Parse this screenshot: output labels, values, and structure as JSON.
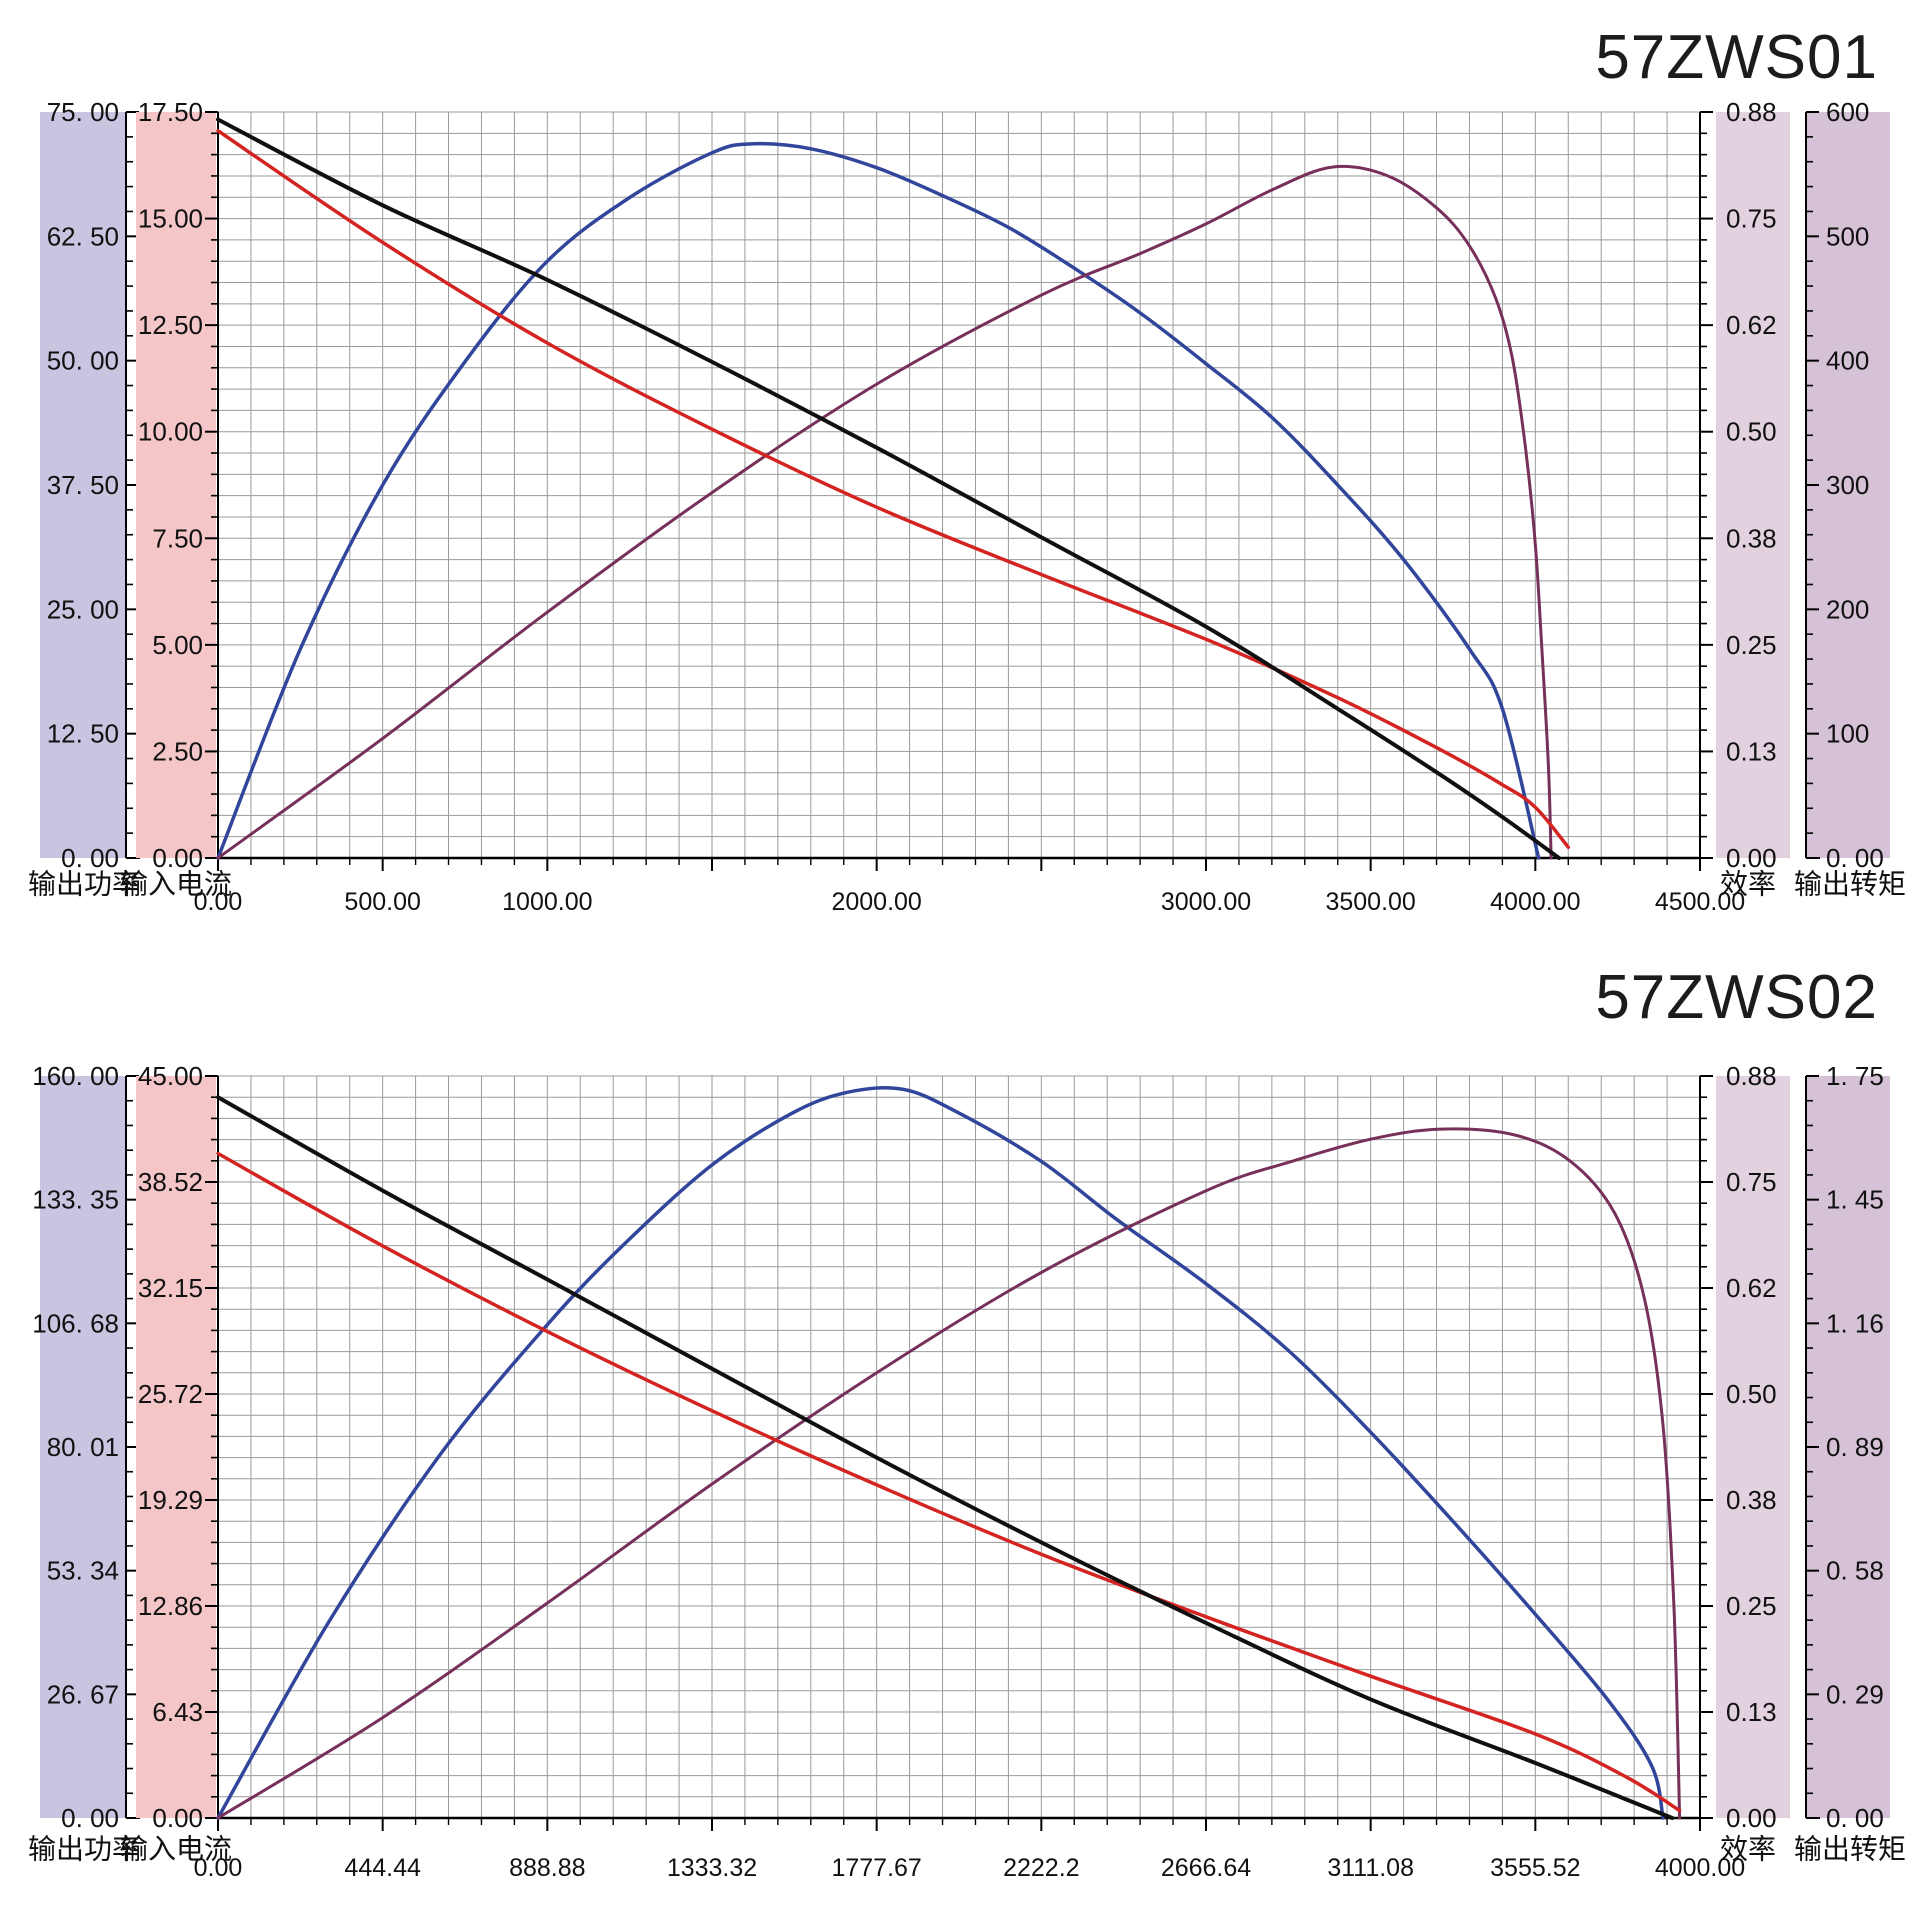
{
  "page": {
    "background": "#ffffff",
    "grid_color": "#9a9a9a",
    "axis_color": "#000000"
  },
  "charts": [
    {
      "title": "57ZWS01",
      "axes": {
        "left_outer": {
          "title": "输出功率",
          "strip_color": "#c8c5e1",
          "labels": [
            "75. 00",
            "62. 50",
            "50. 00",
            "37. 50",
            "25. 00",
            "12. 50",
            "0. 00"
          ]
        },
        "left_inner": {
          "title": "输入电流",
          "strip_color": "#f4c6c8",
          "labels": [
            "17.50",
            "15.00",
            "12.50",
            "10.00",
            "7.50",
            "5.00",
            "2.50",
            "0.00"
          ]
        },
        "right_inner": {
          "title": "效率",
          "strip_color": "#e2d2e0",
          "labels": [
            "0.88",
            "0.75",
            "0.62",
            "0.50",
            "0.38",
            "0.25",
            "0.13",
            "0.00"
          ]
        },
        "right_outer": {
          "title": "输出转矩",
          "strip_color": "#d5c2d6",
          "labels": [
            "600",
            "500",
            "400",
            "300",
            "200",
            "100",
            "0. 00"
          ]
        },
        "x_labels": [
          "0.00",
          "500.00",
          "1000.00",
          "",
          "2000.00",
          "",
          "3000.00",
          "3500.00",
          "4000.00",
          "4500.00"
        ]
      },
      "chart_data": {
        "type": "line",
        "xlabel": "",
        "x_range": [
          0,
          4500
        ],
        "grid": {
          "columns": 45,
          "rows": 35
        },
        "legend_position": "none",
        "series": [
          {
            "name": "输出功率",
            "color": "#31459b",
            "width": 3.5,
            "axis": "输出功率",
            "axis_range": [
              0,
              75
            ],
            "points": [
              [
                0,
                0
              ],
              [
                250,
                21
              ],
              [
                500,
                37.5
              ],
              [
                750,
                49.9
              ],
              [
                1000,
                60
              ],
              [
                1250,
                66.4
              ],
              [
                1500,
                70.9
              ],
              [
                1625,
                71.8
              ],
              [
                1800,
                71.3
              ],
              [
                2000,
                69.4
              ],
              [
                2200,
                66.6
              ],
              [
                2400,
                63.4
              ],
              [
                2600,
                59.3
              ],
              [
                2800,
                54.8
              ],
              [
                3000,
                49.7
              ],
              [
                3200,
                44.3
              ],
              [
                3400,
                37.5
              ],
              [
                3600,
                30
              ],
              [
                3800,
                21
              ],
              [
                3900,
                15
              ],
              [
                4010,
                0
              ]
            ]
          },
          {
            "name": "效率",
            "color": "#77305a",
            "width": 3,
            "axis": "效率",
            "axis_range": [
              0,
              0.88
            ],
            "points": [
              [
                0,
                0
              ],
              [
                500,
                0.141
              ],
              [
                1000,
                0.29
              ],
              [
                1500,
                0.431
              ],
              [
                2000,
                0.559
              ],
              [
                2500,
                0.664
              ],
              [
                2800,
                0.713
              ],
              [
                3000,
                0.748
              ],
              [
                3200,
                0.788
              ],
              [
                3383,
                0.815
              ],
              [
                3550,
                0.805
              ],
              [
                3700,
                0.767
              ],
              [
                3800,
                0.722
              ],
              [
                3880,
                0.66
              ],
              [
                3930,
                0.59
              ],
              [
                3970,
                0.484
              ],
              [
                4000,
                0.37
              ],
              [
                4020,
                0.246
              ],
              [
                4040,
                0.106
              ],
              [
                4048,
                0
              ]
            ]
          },
          {
            "name": "输入电流",
            "color": "#d42421",
            "width": 3.5,
            "axis": "输入电流",
            "axis_range": [
              0,
              17.5
            ],
            "points": [
              [
                0,
                17.06
              ],
              [
                500,
                14.44
              ],
              [
                1000,
                12.08
              ],
              [
                1500,
                10.06
              ],
              [
                2000,
                8.23
              ],
              [
                2500,
                6.65
              ],
              [
                3000,
                5.13
              ],
              [
                3400,
                3.76
              ],
              [
                3700,
                2.59
              ],
              [
                3900,
                1.72
              ],
              [
                4000,
                1.19
              ],
              [
                4100,
                0.25
              ]
            ]
          },
          {
            "name": "输出转矩",
            "color": "#101010",
            "width": 4,
            "axis": "输出转矩",
            "axis_range": [
              0,
              600
            ],
            "points": [
              [
                0,
                594
              ],
              [
                500,
                525
              ],
              [
                1000,
                465
              ],
              [
                1500,
                399
              ],
              [
                2000,
                330
              ],
              [
                2500,
                258
              ],
              [
                3000,
                186
              ],
              [
                3400,
                120
              ],
              [
                3700,
                69
              ],
              [
                3900,
                33
              ],
              [
                4072,
                0
              ]
            ]
          }
        ]
      }
    },
    {
      "title": "57ZWS02",
      "axes": {
        "left_outer": {
          "title": "输出功率",
          "strip_color": "#c8c5e1",
          "labels": [
            "160. 00",
            "133. 35",
            "106. 68",
            "80. 01",
            "53. 34",
            "26. 67",
            "0. 00"
          ]
        },
        "left_inner": {
          "title": "输入电流",
          "strip_color": "#f4c6c8",
          "labels": [
            "45.00",
            "38.52",
            "32.15",
            "25.72",
            "19.29",
            "12.86",
            "6.43",
            "0.00"
          ]
        },
        "right_inner": {
          "title": "效率",
          "strip_color": "#e2d2e0",
          "labels": [
            "0.88",
            "0.75",
            "0.62",
            "0.50",
            "0.38",
            "0.25",
            "0.13",
            "0.00"
          ]
        },
        "right_outer": {
          "title": "输出转矩",
          "strip_color": "#d5c2d6",
          "labels": [
            "1. 75",
            "1. 45",
            "1. 16",
            "0. 89",
            "0. 58",
            "0. 29",
            "0. 00"
          ]
        },
        "x_labels": [
          "0.00",
          "444.44",
          "888.88",
          "1333.32",
          "1777.67",
          "2222.2",
          "2666.64",
          "3111.08",
          "3555.52",
          "4000.00"
        ]
      },
      "chart_data": {
        "type": "line",
        "xlabel": "",
        "x_range": [
          0,
          4000
        ],
        "grid": {
          "columns": 45,
          "rows": 35
        },
        "legend_position": "none",
        "series": [
          {
            "name": "输出功率",
            "color": "#31459b",
            "width": 3.5,
            "axis": "输出功率",
            "axis_range": [
              0,
              160
            ],
            "points": [
              [
                0,
                0
              ],
              [
                300,
                42.4
              ],
              [
                600,
                78.4
              ],
              [
                889,
                106.4
              ],
              [
                1100,
                124
              ],
              [
                1333,
                140.8
              ],
              [
                1550,
                152
              ],
              [
                1700,
                156.5
              ],
              [
                1850,
                157.1
              ],
              [
                2000,
                152
              ],
              [
                2222,
                141.6
              ],
              [
                2427,
                129
              ],
              [
                2667,
                115.2
              ],
              [
                2889,
                100.8
              ],
              [
                3111,
                83.2
              ],
              [
                3333,
                64
              ],
              [
                3555,
                44
              ],
              [
                3750,
                25.6
              ],
              [
                3870,
                11.2
              ],
              [
                3900,
                0
              ]
            ]
          },
          {
            "name": "效率",
            "color": "#77305a",
            "width": 3,
            "axis": "效率",
            "axis_range": [
              0,
              0.88
            ],
            "points": [
              [
                0,
                0
              ],
              [
                444,
                0.119
              ],
              [
                889,
                0.255
              ],
              [
                1333,
                0.396
              ],
              [
                1778,
                0.528
              ],
              [
                2222,
                0.647
              ],
              [
                2667,
                0.744
              ],
              [
                2900,
                0.779
              ],
              [
                3111,
                0.805
              ],
              [
                3300,
                0.817
              ],
              [
                3500,
                0.81
              ],
              [
                3650,
                0.779
              ],
              [
                3770,
                0.717
              ],
              [
                3850,
                0.616
              ],
              [
                3900,
                0.466
              ],
              [
                3930,
                0.246
              ],
              [
                3945,
                0
              ]
            ]
          },
          {
            "name": "输入电流",
            "color": "#d42421",
            "width": 3.5,
            "axis": "输入电流",
            "axis_range": [
              0,
              45
            ],
            "points": [
              [
                0,
                40.3
              ],
              [
                444,
                34.7
              ],
              [
                889,
                29.5
              ],
              [
                1333,
                24.7
              ],
              [
                1778,
                20.2
              ],
              [
                2222,
                16
              ],
              [
                2667,
                12.2
              ],
              [
                3111,
                8.6
              ],
              [
                3555,
                5.1
              ],
              [
                3800,
                2.5
              ],
              [
                3945,
                0.45
              ]
            ]
          },
          {
            "name": "输出转矩",
            "color": "#101010",
            "width": 4,
            "axis": "输出转矩",
            "axis_range": [
              0,
              1.75
            ],
            "points": [
              [
                0,
                1.7
              ],
              [
                444,
                1.48
              ],
              [
                889,
                1.27
              ],
              [
                1333,
                1.06
              ],
              [
                1778,
                0.85
              ],
              [
                2222,
                0.65
              ],
              [
                2667,
                0.46
              ],
              [
                3111,
                0.28
              ],
              [
                3555,
                0.13
              ],
              [
                3925,
                0
              ]
            ]
          }
        ]
      }
    }
  ]
}
